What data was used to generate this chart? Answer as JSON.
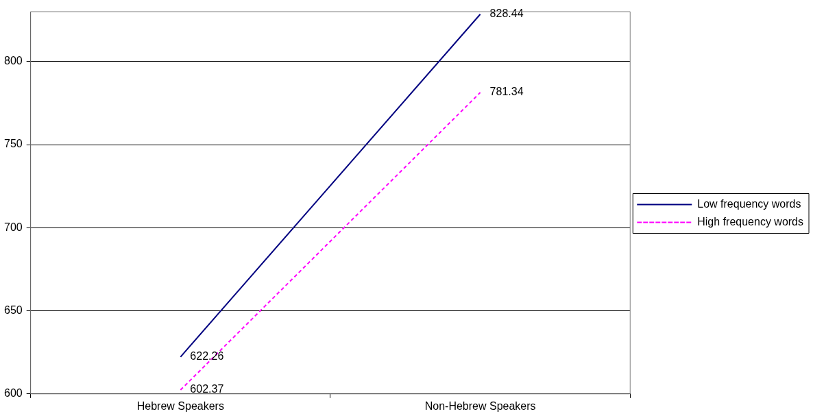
{
  "chart_data": {
    "type": "line",
    "categories": [
      "Hebrew Speakers",
      "Non-Hebrew Speakers"
    ],
    "series": [
      {
        "name": "Low frequency words",
        "color": "#000080",
        "values": [
          622.26,
          828.44
        ],
        "line_style": "solid"
      },
      {
        "name": "High frequency words",
        "color": "#ff00ff",
        "values": [
          602.37,
          781.34
        ],
        "line_style": "dashed"
      }
    ],
    "ylim": [
      600,
      830
    ],
    "yticks": [
      600,
      650,
      700,
      750,
      800
    ],
    "grid": "y",
    "legend": "right",
    "marker": "none",
    "data_labels": true
  }
}
